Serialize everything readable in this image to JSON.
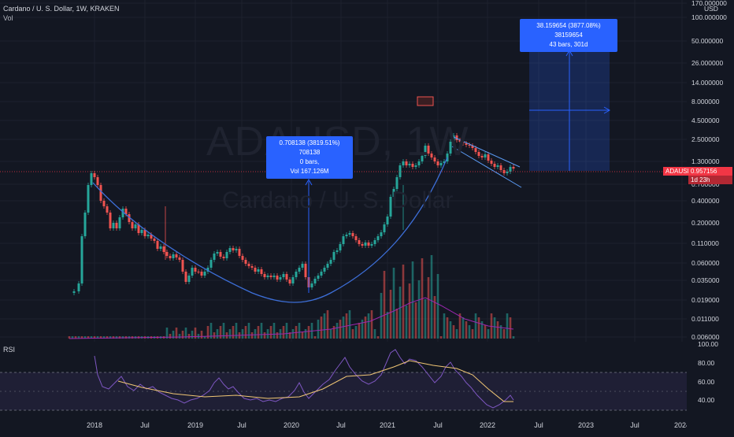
{
  "legend": {
    "title": "Cardano / U. S. Dollar, 1W, KRAKEN",
    "vol_label": "Vol"
  },
  "watermark": {
    "symbol": "ADAUSD, 1W",
    "name": "Cardano / U. S. Dollar"
  },
  "price_axis": {
    "unit": "USD",
    "ticks": [
      "170.000000",
      "100.000000",
      "50.000000",
      "26.000000",
      "14.000000",
      "8.000000",
      "4.500000",
      "2.500000",
      "1.300000",
      "0.700000",
      "0.400000",
      "0.200000",
      "0.110000",
      "0.060000",
      "0.035000",
      "0.019000",
      "0.011000",
      "0.006000"
    ],
    "current_symbol": "ADAUSD",
    "current_price": "0.957156",
    "countdown": "1d 23h"
  },
  "rsi": {
    "label": "RSI",
    "ticks": [
      "100.00",
      "80.00",
      "60.00",
      "40.00"
    ]
  },
  "time_axis": {
    "ticks": [
      "2018",
      "Jul",
      "2019",
      "Jul",
      "2020",
      "Jul",
      "2021",
      "Jul",
      "2022",
      "Jul",
      "2023",
      "Jul",
      "2024"
    ]
  },
  "annotations": {
    "measure_left": {
      "line1": "0.708138 (3819.51%) 708138",
      "line2": "0 bars,",
      "line3": "Vol 167.126M"
    },
    "measure_right": {
      "line1": "38.159654 (3877.08%) 38159654",
      "line2": "43 bars, 301d"
    },
    "flag_icon": "flag-icon"
  },
  "colors": {
    "background": "#131722",
    "up": "#26a69a",
    "down": "#ef5350",
    "price_line": "#f23645",
    "callout": "#2962ff",
    "rsi_line": "#7e57c2",
    "rsi_ma": "#f0c674",
    "channel": "#5b9cf6"
  }
}
